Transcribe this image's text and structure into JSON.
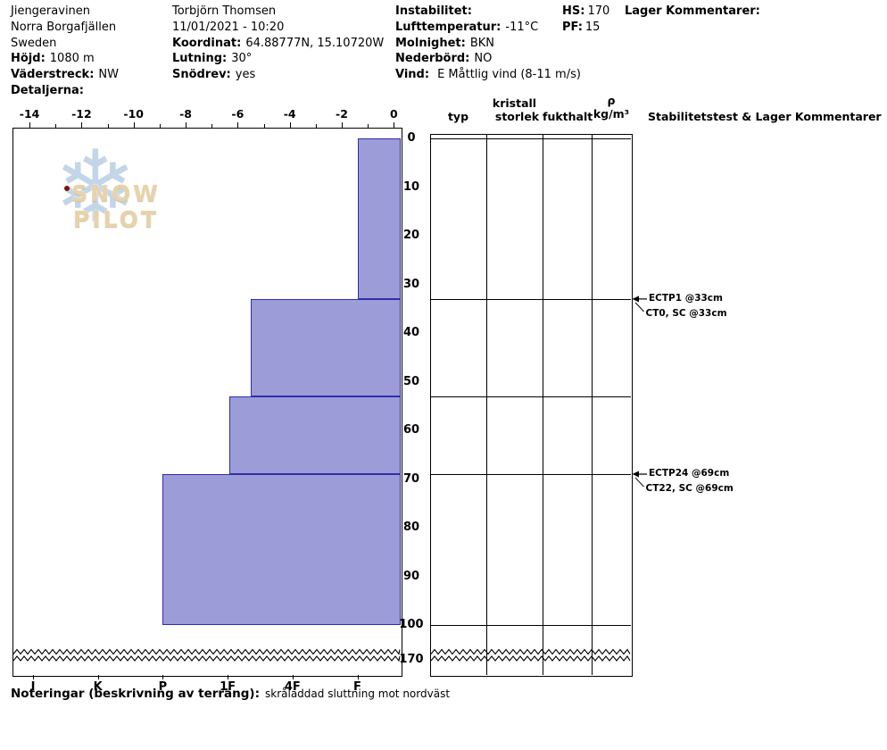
{
  "header": {
    "site": {
      "name": "Jiengeravinen",
      "region": "Norra Borgafjällen",
      "country": "Sweden",
      "elevation_label": "Höjd:",
      "elevation_value": "1080 m",
      "aspect_label": "Väderstreck:",
      "aspect_value": "NW",
      "details_label": "Detaljerna:"
    },
    "observer": {
      "name": "Torbjörn Thomsen",
      "datetime": "11/01/2021 - 10:20",
      "coordinate_label": "Koordinat:",
      "coordinate_value": "64.88777N, 15.10720W",
      "slope_label": "Lutning:",
      "slope_value": "30°",
      "drifting_label": "Snödrev:",
      "drifting_value": "yes"
    },
    "weather": {
      "instability_label": "Instabilitet:",
      "air_temp_label": "Lufttemperatur:",
      "air_temp_value": "-11°C",
      "sky_label": "Molnighet:",
      "sky_value": "BKN",
      "precip_label": "Nederbörd:",
      "precip_value": "NO",
      "wind_label": "Vind:",
      "wind_value": "E Måttlig vind (8-11 m/s)"
    },
    "snowpack": {
      "hs_label": "HS:",
      "hs_value": "170",
      "pf_label": "PF:",
      "pf_value": "15"
    },
    "layer_comments_label": "Lager Kommentarer:"
  },
  "logo": {
    "text": "SNOW PILOT"
  },
  "chart_data": {
    "type": "bar",
    "subtype": "snow-profile-horizontal",
    "temperature_axis": {
      "unit": "°C",
      "ticks": [
        -14,
        -12,
        -10,
        -8,
        -6,
        -4,
        -2,
        0
      ],
      "min": -14,
      "max": 0
    },
    "depth_axis": {
      "ticks": [
        0,
        10,
        20,
        30,
        40,
        50,
        60,
        70,
        80,
        90,
        100
      ],
      "pit_depth_cm": 100,
      "total_depth_label": "170"
    },
    "hardness_axis": {
      "ticks": [
        "I",
        "K",
        "P",
        "1F",
        "4F",
        "F"
      ]
    },
    "layers": [
      {
        "top_cm": 0,
        "bottom_cm": 33,
        "hardness": "F",
        "hardness_index": 5
      },
      {
        "top_cm": 33,
        "bottom_cm": 53,
        "hardness": "1F+",
        "hardness_index": 3.35
      },
      {
        "top_cm": 53,
        "bottom_cm": 69,
        "hardness": "1F",
        "hardness_index": 3.02
      },
      {
        "top_cm": 69,
        "bottom_cm": 100,
        "hardness": "P",
        "hardness_index": 2.0
      }
    ],
    "layer_fill": "#9c9cd9",
    "layer_stroke": "#2e2ea8",
    "stability_tests": [
      {
        "depth_cm": 33,
        "primary": "ECTP1 @33cm",
        "secondary": "CT0, SC @33cm"
      },
      {
        "depth_cm": 69,
        "primary": "ECTP24 @69cm",
        "secondary": "CT22, SC @69cm"
      }
    ],
    "columns": {
      "typ": "typ",
      "kristall_line1": "kristall",
      "kristall_line2": "storlek",
      "fukthalt": "fukthalt",
      "rho_symbol": "ρ",
      "rho_unit": "kg/m³",
      "stability_header": "Stabilitetstest & Lager Kommentarer"
    }
  },
  "footer": {
    "notes_label": "Noteringar (beskrivning av terräng):",
    "notes_value": "skråladdad sluttning mot nordväst"
  }
}
